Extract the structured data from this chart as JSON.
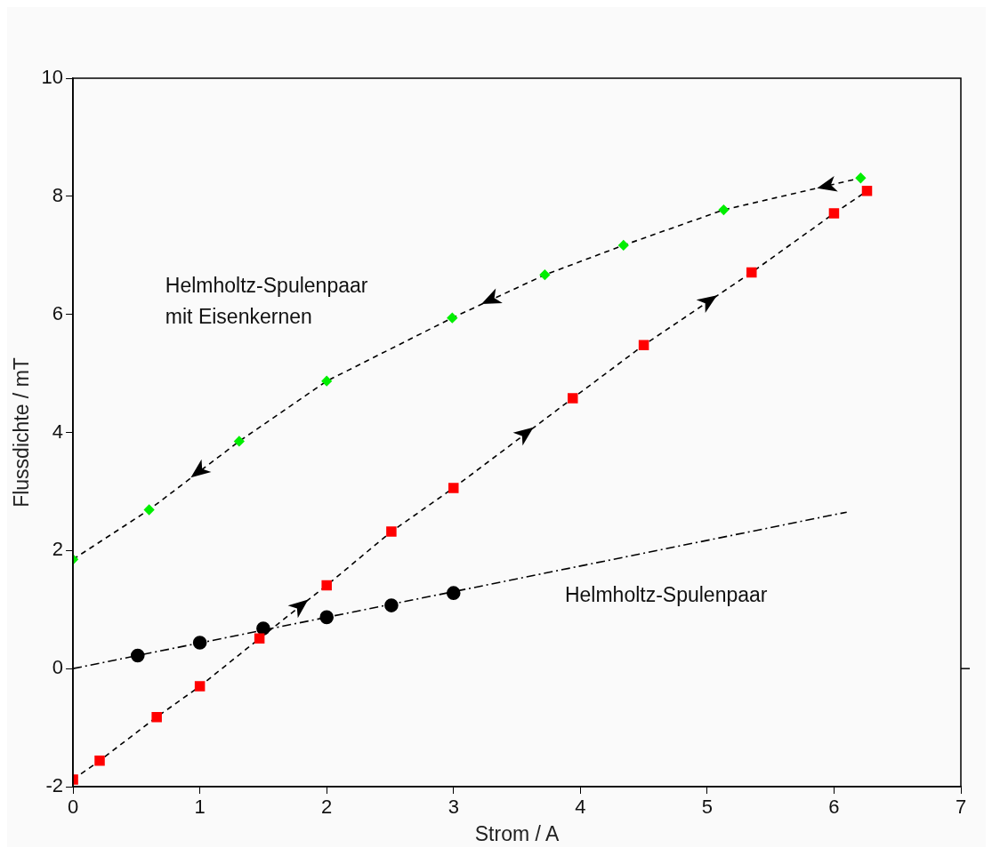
{
  "chart_data": {
    "type": "line",
    "xlabel": "Strom / A",
    "ylabel": "Flussdichte / mT",
    "xlim": [
      0,
      7
    ],
    "ylim": [
      -2,
      10
    ],
    "xticks": [
      0,
      1,
      2,
      3,
      4,
      5,
      6,
      7
    ],
    "yticks": [
      -2,
      0,
      2,
      4,
      6,
      8,
      10
    ],
    "series": [
      {
        "color": "#ff0000",
        "marker": "square",
        "line_style": "dashed",
        "x": [
          0,
          0.21,
          0.66,
          1.0,
          1.47,
          2.0,
          2.51,
          3.0,
          3.94,
          4.5,
          5.35,
          6.0,
          6.26
        ],
        "values": [
          -1.88,
          -1.56,
          -0.82,
          -0.3,
          0.51,
          1.41,
          2.32,
          3.06,
          4.58,
          5.48,
          6.71,
          7.71,
          8.09
        ]
      },
      {
        "color": "#00ee00",
        "marker": "diamond",
        "line_style": "dashed",
        "x": [
          0,
          0.6,
          1.31,
          2.0,
          2.99,
          3.72,
          4.34,
          5.13,
          6.21
        ],
        "values": [
          1.85,
          2.69,
          3.85,
          4.87,
          5.94,
          6.67,
          7.17,
          7.77,
          8.31
        ]
      },
      {
        "type": "scatter",
        "color": "#000000",
        "marker": "circle",
        "x": [
          0.51,
          1.0,
          1.5,
          2.0,
          2.51,
          3.0
        ],
        "values": [
          0.22,
          0.44,
          0.68,
          0.87,
          1.07,
          1.28
        ]
      },
      {
        "color": "#000000",
        "marker": "none",
        "line_style": "dashdot",
        "x": [
          0,
          6.1
        ],
        "values": [
          0,
          2.65
        ]
      }
    ],
    "annotations": [
      "Helmholtz-Spulenpaar\nmit Eisenkernen",
      "Helmholtz-Spulenpaar"
    ]
  }
}
